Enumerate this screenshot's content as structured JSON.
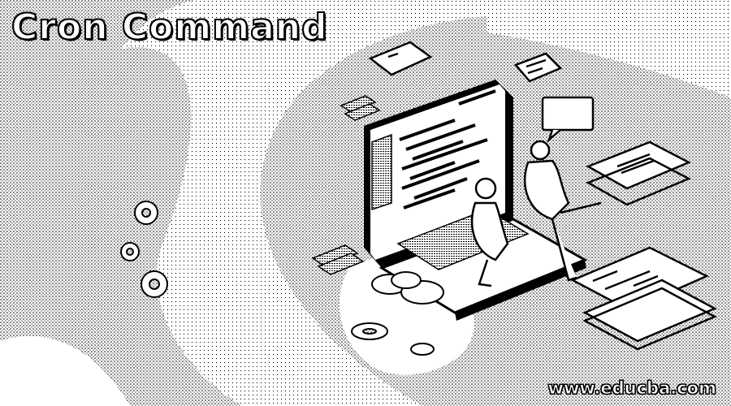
{
  "banner": {
    "title": "Cron Command",
    "watermark": "www.educba.com"
  },
  "colors": {
    "background": "#ffffff",
    "ink": "#000000",
    "stipple": "#9a9a9a"
  },
  "illustration": {
    "subject": "isometric-laptop-with-code",
    "icons": [
      "laptop-icon",
      "person-icon",
      "chat-bubble-icon",
      "gear-icon",
      "document-icon",
      "cloud-icon"
    ]
  }
}
